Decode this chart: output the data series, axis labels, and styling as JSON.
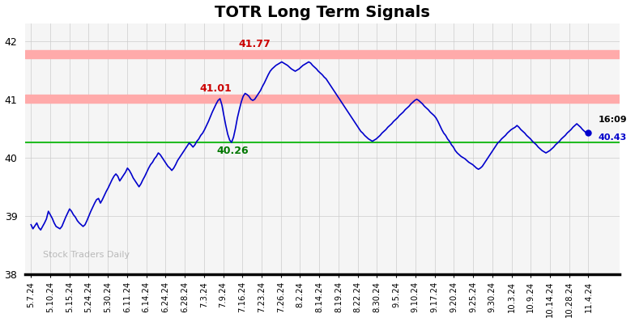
{
  "title": "TOTR Long Term Signals",
  "title_fontsize": 14,
  "title_fontweight": "bold",
  "ylim": [
    38.0,
    42.3
  ],
  "yticks": [
    38,
    39,
    40,
    41,
    42
  ],
  "hline_green": 40.26,
  "hline_red1": 41.01,
  "hline_red2": 41.77,
  "hline_green_color": "#22bb22",
  "hline_red_color": "#ffaaaa",
  "label_41_77": "41.77",
  "label_41_01": "41.01",
  "label_40_26": "40.26",
  "label_time": "16:09",
  "label_price": "40.43",
  "watermark": "Stock Traders Daily",
  "line_color": "#0000cc",
  "background_color": "#f5f5f5",
  "grid_color": "#cccccc",
  "xtick_labels": [
    "5.7.24",
    "5.10.24",
    "5.15.24",
    "5.24.24",
    "5.30.24",
    "6.11.24",
    "6.14.24",
    "6.24.24",
    "6.28.24",
    "7.3.24",
    "7.9.24",
    "7.16.24",
    "7.23.24",
    "7.26.24",
    "8.2.24",
    "8.14.24",
    "8.19.24",
    "8.22.24",
    "8.30.24",
    "9.5.24",
    "9.10.24",
    "9.17.24",
    "9.20.24",
    "9.25.24",
    "9.30.24",
    "10.3.24",
    "10.9.24",
    "10.14.24",
    "10.28.24",
    "11.4.24"
  ],
  "price_data": [
    38.85,
    38.78,
    38.83,
    38.88,
    38.8,
    38.76,
    38.82,
    38.88,
    38.95,
    39.08,
    39.02,
    38.96,
    38.88,
    38.82,
    38.8,
    38.78,
    38.82,
    38.9,
    38.98,
    39.05,
    39.12,
    39.08,
    39.02,
    38.98,
    38.92,
    38.88,
    38.85,
    38.82,
    38.85,
    38.92,
    39.0,
    39.08,
    39.15,
    39.22,
    39.28,
    39.3,
    39.22,
    39.28,
    39.35,
    39.42,
    39.48,
    39.55,
    39.62,
    39.68,
    39.72,
    39.68,
    39.6,
    39.65,
    39.7,
    39.75,
    39.82,
    39.78,
    39.72,
    39.65,
    39.6,
    39.55,
    39.5,
    39.55,
    39.62,
    39.68,
    39.75,
    39.82,
    39.88,
    39.92,
    39.98,
    40.02,
    40.08,
    40.05,
    40.0,
    39.95,
    39.9,
    39.85,
    39.82,
    39.78,
    39.82,
    39.88,
    39.95,
    40.0,
    40.05,
    40.1,
    40.15,
    40.2,
    40.25,
    40.22,
    40.18,
    40.22,
    40.28,
    40.32,
    40.38,
    40.42,
    40.48,
    40.55,
    40.62,
    40.7,
    40.78,
    40.85,
    40.92,
    40.98,
    41.01,
    40.9,
    40.72,
    40.55,
    40.4,
    40.3,
    40.26,
    40.35,
    40.5,
    40.68,
    40.82,
    40.95,
    41.05,
    41.1,
    41.08,
    41.05,
    41.0,
    40.98,
    41.0,
    41.05,
    41.1,
    41.15,
    41.22,
    41.28,
    41.35,
    41.42,
    41.48,
    41.52,
    41.55,
    41.58,
    41.6,
    41.62,
    41.64,
    41.62,
    41.6,
    41.58,
    41.55,
    41.52,
    41.5,
    41.48,
    41.5,
    41.52,
    41.55,
    41.58,
    41.6,
    41.62,
    41.64,
    41.62,
    41.58,
    41.55,
    41.52,
    41.48,
    41.45,
    41.42,
    41.38,
    41.35,
    41.3,
    41.25,
    41.2,
    41.15,
    41.1,
    41.05,
    41.0,
    40.95,
    40.9,
    40.85,
    40.8,
    40.75,
    40.7,
    40.65,
    40.6,
    40.55,
    40.5,
    40.45,
    40.42,
    40.38,
    40.35,
    40.32,
    40.3,
    40.28,
    40.3,
    40.32,
    40.35,
    40.38,
    40.42,
    40.45,
    40.48,
    40.52,
    40.55,
    40.58,
    40.62,
    40.65,
    40.68,
    40.72,
    40.75,
    40.78,
    40.82,
    40.85,
    40.88,
    40.92,
    40.95,
    40.98,
    41.0,
    40.98,
    40.95,
    40.92,
    40.88,
    40.85,
    40.82,
    40.78,
    40.75,
    40.72,
    40.68,
    40.62,
    40.55,
    40.48,
    40.42,
    40.38,
    40.32,
    40.28,
    40.22,
    40.18,
    40.12,
    40.08,
    40.05,
    40.02,
    40.0,
    39.98,
    39.95,
    39.92,
    39.9,
    39.88,
    39.85,
    39.82,
    39.8,
    39.82,
    39.85,
    39.9,
    39.95,
    40.0,
    40.05,
    40.1,
    40.15,
    40.2,
    40.25,
    40.28,
    40.32,
    40.35,
    40.38,
    40.42,
    40.45,
    40.48,
    40.5,
    40.52,
    40.55,
    40.52,
    40.48,
    40.45,
    40.42,
    40.38,
    40.35,
    40.32,
    40.28,
    40.25,
    40.22,
    40.18,
    40.15,
    40.12,
    40.1,
    40.08,
    40.1,
    40.12,
    40.15,
    40.18,
    40.22,
    40.25,
    40.28,
    40.32,
    40.35,
    40.38,
    40.42,
    40.45,
    40.48,
    40.52,
    40.55,
    40.58,
    40.55,
    40.52,
    40.48,
    40.45,
    40.42,
    40.43
  ]
}
